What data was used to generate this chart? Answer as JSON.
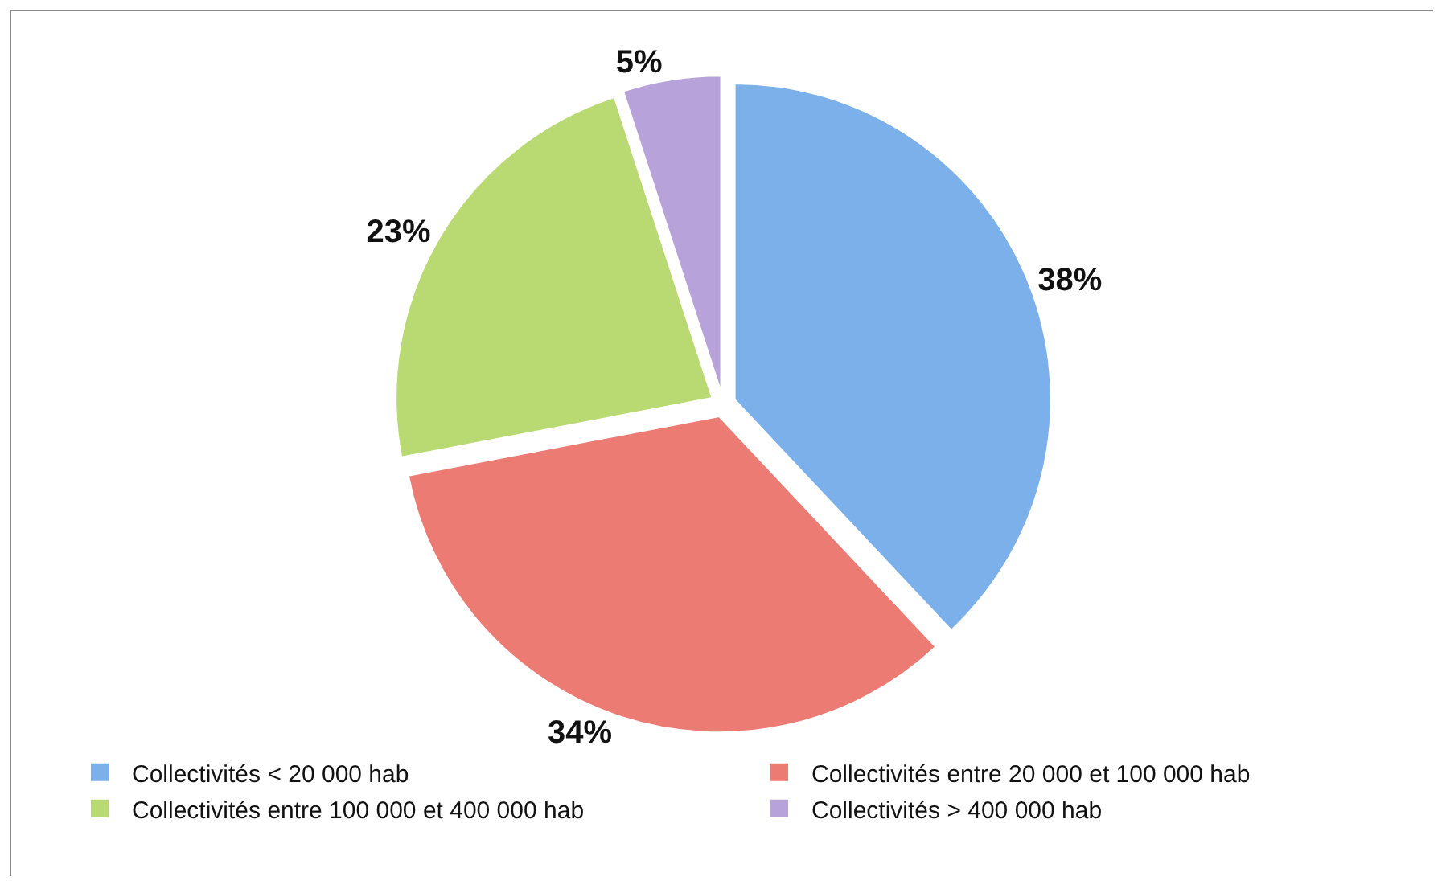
{
  "chart_data": {
    "type": "pie",
    "categories": [
      "Collectivités < 20 000 hab",
      "Collectivités entre 20 000 et 100 000 hab",
      "Collectivités entre 100 000 et 400 000 hab",
      "Collectivités > 400 000 hab"
    ],
    "values": [
      38,
      34,
      23,
      5
    ],
    "value_labels": [
      "38%",
      "34%",
      "23%",
      "5%"
    ],
    "colors": [
      "#7cb0ea",
      "#ec7b73",
      "#b9da72",
      "#b7a2d9"
    ],
    "legend": "bottom"
  }
}
